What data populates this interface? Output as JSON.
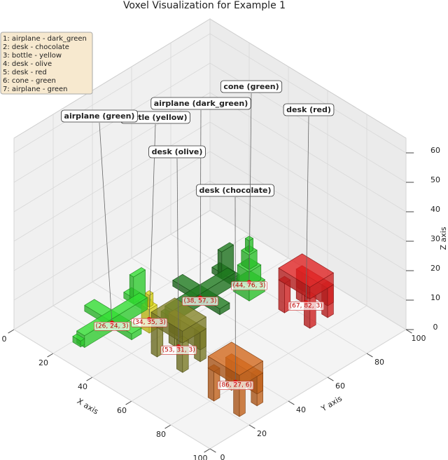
{
  "chart_data": {
    "type": "voxel3d",
    "title": "Voxel Visualization for Example 1",
    "xlabel": "X axis",
    "ylabel": "Y axis",
    "zlabel": "Z axis",
    "xlim": [
      0,
      100
    ],
    "ylim": [
      0,
      100
    ],
    "zlim": [
      0,
      65
    ],
    "xticks": [
      0,
      20,
      40,
      60,
      80,
      100
    ],
    "yticks": [
      0,
      20,
      40,
      60,
      80,
      100
    ],
    "zticks": [
      0,
      10,
      20,
      30,
      40,
      50,
      60
    ],
    "grid": true,
    "objects": [
      {
        "legend_label": "1: airplane - dark_green",
        "annotation": "airplane (dark_green)",
        "kind": "airplane",
        "color": "#1f7a1f",
        "x": 38,
        "y": 57,
        "z": 3,
        "value_label": "(38, 57, 3)"
      },
      {
        "legend_label": "2: desk - chocolate",
        "annotation": "desk (chocolate)",
        "kind": "desk",
        "color": "#d2691e",
        "x": 86,
        "y": 27,
        "z": 6,
        "value_label": "(86, 27, 6)"
      },
      {
        "legend_label": "3: bottle - yellow",
        "annotation": "bottle (yellow)",
        "kind": "bottle",
        "color": "#e6e01a",
        "x": 34,
        "y": 35,
        "z": 3,
        "value_label": "(34, 35, 3)"
      },
      {
        "legend_label": "4: desk - olive",
        "annotation": "desk (olive)",
        "kind": "desk",
        "color": "#86862a",
        "x": 53,
        "y": 31,
        "z": 3,
        "value_label": "(53, 31, 3)"
      },
      {
        "legend_label": "5: desk - red",
        "annotation": "desk (red)",
        "kind": "desk",
        "color": "#e02424",
        "x": 67,
        "y": 82,
        "z": 3,
        "value_label": "(67, 82, 3)"
      },
      {
        "legend_label": "6: cone - green",
        "annotation": "cone (green)",
        "kind": "cone",
        "color": "#2fd12f",
        "x": 44,
        "y": 76,
        "z": 3,
        "value_label": "(44, 76, 3)"
      },
      {
        "legend_label": "7: airplane - green",
        "annotation": "airplane (green)",
        "kind": "airplane",
        "color": "#33dd33",
        "x": 26,
        "y": 24,
        "z": 3,
        "value_label": "(26, 24, 3)"
      }
    ]
  }
}
